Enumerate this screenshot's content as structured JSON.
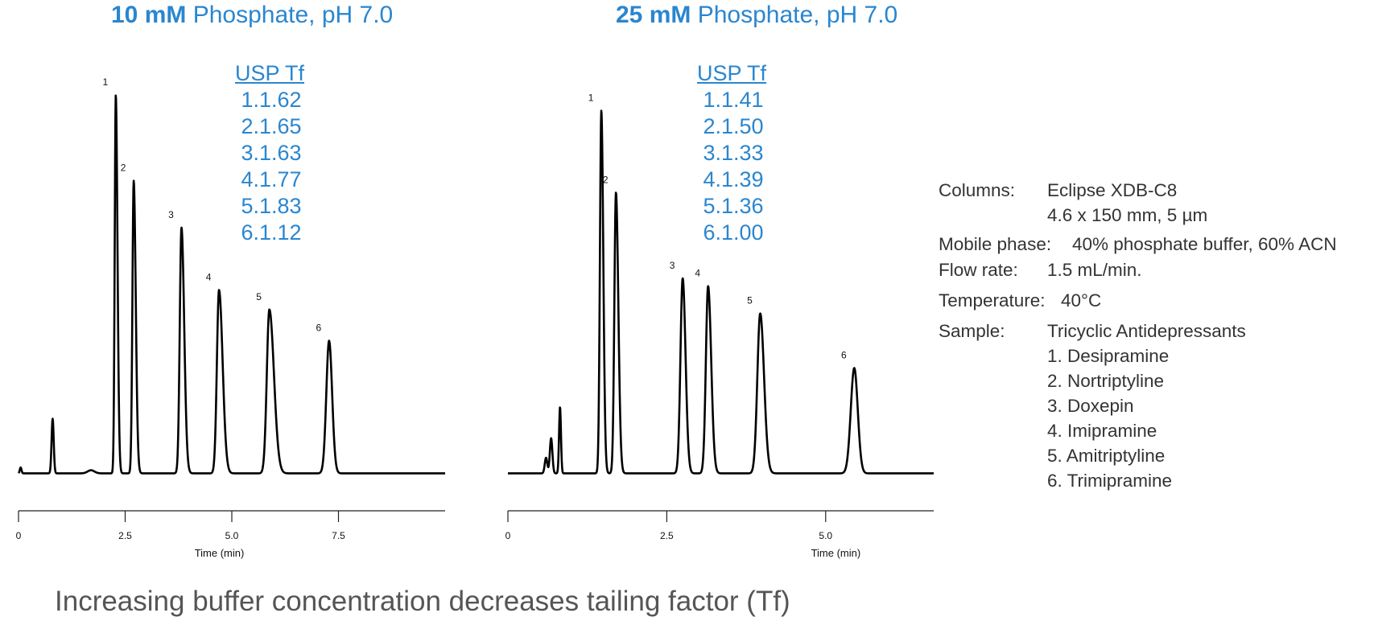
{
  "panels": [
    {
      "title_bold": "10 mM",
      "title_rest": " Phosphate, pH 7.0",
      "tf_header": "USP Tf",
      "tf": [
        {
          "n": "1.",
          "v": "1.62"
        },
        {
          "n": "2.",
          "v": "1.65"
        },
        {
          "n": "3.",
          "v": "1.63"
        },
        {
          "n": "4.",
          "v": "1.77"
        },
        {
          "n": "5.",
          "v": "1.83"
        },
        {
          "n": "6.",
          "v": "1.12"
        }
      ]
    },
    {
      "title_bold": "25 mM",
      "title_rest": " Phosphate, pH 7.0",
      "tf_header": "USP Tf",
      "tf": [
        {
          "n": "1.",
          "v": "1.41"
        },
        {
          "n": "2.",
          "v": "1.50"
        },
        {
          "n": "3.",
          "v": "1.33"
        },
        {
          "n": "4.",
          "v": "1.39"
        },
        {
          "n": "5.",
          "v": "1.36"
        },
        {
          "n": "6.",
          "v": "1.00"
        }
      ]
    }
  ],
  "chart_data": [
    {
      "type": "line",
      "title": "10 mM Phosphate, pH 7.0",
      "xlabel": "Time (min)",
      "ylabel": "",
      "xlim": [
        0,
        10
      ],
      "ylim": [
        0,
        100
      ],
      "xticks": [
        0,
        2.5,
        5.0,
        7.5
      ],
      "xtick_labels": [
        "0",
        "2.5",
        "5.0",
        "7.5"
      ],
      "grid": false,
      "baseline": 3,
      "peaks": [
        {
          "label": "",
          "t": 0.05,
          "h": 1.5,
          "w": 0.02,
          "tail": 1.0
        },
        {
          "label": "",
          "t": 0.8,
          "h": 14,
          "w": 0.025,
          "tail": 1.0
        },
        {
          "label": "",
          "t": 1.7,
          "h": 0.8,
          "w": 0.08,
          "tail": 1.0
        },
        {
          "label": "1",
          "t": 2.28,
          "h": 97,
          "w": 0.025,
          "tail": 1.6
        },
        {
          "label": "2",
          "t": 2.7,
          "h": 75,
          "w": 0.03,
          "tail": 1.6
        },
        {
          "label": "3",
          "t": 3.82,
          "h": 63,
          "w": 0.04,
          "tail": 1.6
        },
        {
          "label": "4",
          "t": 4.7,
          "h": 47,
          "w": 0.05,
          "tail": 1.7
        },
        {
          "label": "5",
          "t": 5.88,
          "h": 42,
          "w": 0.06,
          "tail": 1.8
        },
        {
          "label": "6",
          "t": 7.28,
          "h": 34,
          "w": 0.065,
          "tail": 1.1
        }
      ]
    },
    {
      "type": "line",
      "title": "25 mM Phosphate, pH 7.0",
      "xlabel": "Time (min)",
      "ylabel": "",
      "xlim": [
        0,
        6.7
      ],
      "ylim": [
        0,
        100
      ],
      "xticks": [
        0,
        2.5,
        5.0
      ],
      "xtick_labels": [
        "0",
        "2.5",
        "5.0"
      ],
      "grid": false,
      "baseline": 3,
      "peaks": [
        {
          "label": "",
          "t": 0.6,
          "h": 4,
          "w": 0.02,
          "tail": 1.0
        },
        {
          "label": "",
          "t": 0.68,
          "h": 9,
          "w": 0.02,
          "tail": 1.0
        },
        {
          "label": "",
          "t": 0.82,
          "h": 17,
          "w": 0.015,
          "tail": 1.0
        },
        {
          "label": "1",
          "t": 1.47,
          "h": 93,
          "w": 0.022,
          "tail": 1.4
        },
        {
          "label": "2",
          "t": 1.7,
          "h": 72,
          "w": 0.025,
          "tail": 1.5
        },
        {
          "label": "3",
          "t": 2.75,
          "h": 50,
          "w": 0.035,
          "tail": 1.3
        },
        {
          "label": "4",
          "t": 3.15,
          "h": 48,
          "w": 0.035,
          "tail": 1.4
        },
        {
          "label": "5",
          "t": 3.97,
          "h": 41,
          "w": 0.045,
          "tail": 1.35
        },
        {
          "label": "6",
          "t": 5.45,
          "h": 27,
          "w": 0.055,
          "tail": 1.0
        }
      ]
    }
  ],
  "conditions": [
    {
      "label": "Columns:",
      "value": "Eclipse XDB-C8"
    },
    {
      "label": "",
      "value": "4.6 x 150 mm, 5 µm"
    },
    {
      "label": "Mobile phase:",
      "value": "40% phosphate buffer, 60% ACN"
    },
    {
      "label": "Flow rate:",
      "value": "1.5 mL/min."
    },
    {
      "label": "Temperature:",
      "value": "40°C"
    },
    {
      "label": "Sample:",
      "value": "Tricyclic Antidepressants"
    },
    {
      "label": "",
      "value": "1. Desipramine"
    },
    {
      "label": "",
      "value": "2. Nortriptyline"
    },
    {
      "label": "",
      "value": "3. Doxepin"
    },
    {
      "label": "",
      "value": "4. Imipramine"
    },
    {
      "label": "",
      "value": "5. Amitriptyline"
    },
    {
      "label": "",
      "value": "6. Trimipramine"
    }
  ],
  "caption": "Increasing buffer concentration decreases tailing factor (Tf)",
  "colors": {
    "accent": "#2a86cf",
    "trace": "#000000",
    "text": "#333333"
  }
}
